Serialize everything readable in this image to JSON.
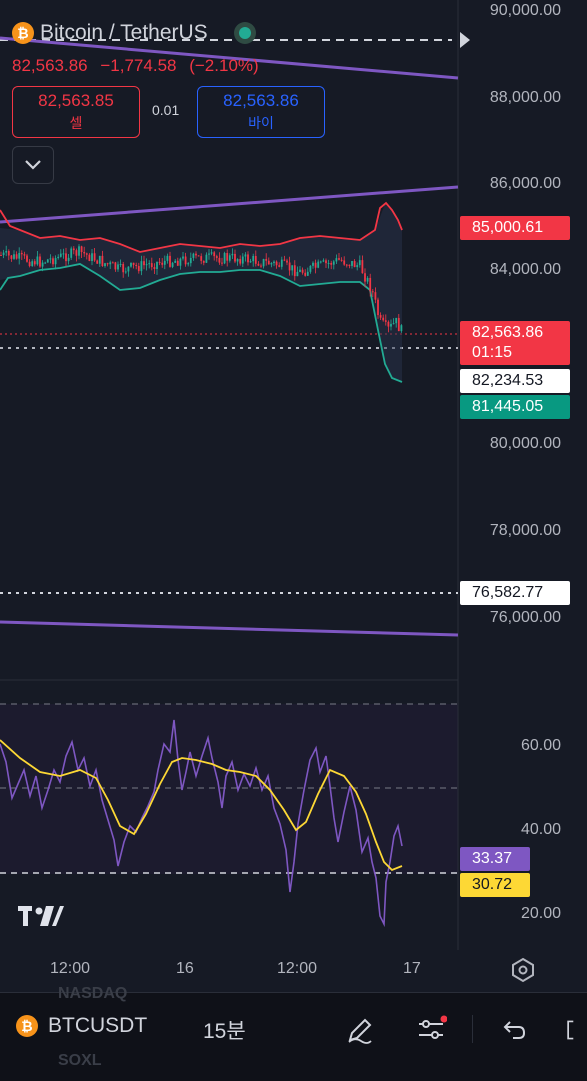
{
  "header": {
    "pair_title": "Bitcoin / TetherUS",
    "last_price": "82,563.86",
    "change": "−1,774.58",
    "change_pct": "(−2.10%)"
  },
  "trade": {
    "sell_price": "82,563.85",
    "sell_label": "셀",
    "spread": "0.01",
    "buy_price": "82,563.86",
    "buy_label": "바이"
  },
  "price_axis": [
    "90,000.00",
    "88,000.00",
    "86,000.00",
    "84,000.00",
    "80,000.00",
    "78,000.00",
    "76,000.00"
  ],
  "price_tags": {
    "bb_upper": "85,000.61",
    "last": "82,563.86",
    "countdown": "01:15",
    "bb_basis": "82,234.53",
    "bb_lower": "81,445.05",
    "level": "76,582.77"
  },
  "rsi_axis": [
    "60.00",
    "40.00",
    "20.00"
  ],
  "rsi_tags": {
    "rsi": "33.37",
    "rsi_ma": "30.72"
  },
  "time_axis": [
    "12:00",
    "16",
    "12:00",
    "17"
  ],
  "bottom_bar": {
    "symbol": "BTCUSDT",
    "interval": "15분",
    "ghost_top": "NASDAQ",
    "ghost_bottom": "SOXL"
  },
  "colors": {
    "background": "#161a25",
    "up": "#22ab94",
    "down": "#f23645",
    "trendline": "#7e57c2",
    "rsi_line": "#7e57c2",
    "rsi_ma": "#fdd835",
    "buy_accent": "#2962ff"
  }
}
